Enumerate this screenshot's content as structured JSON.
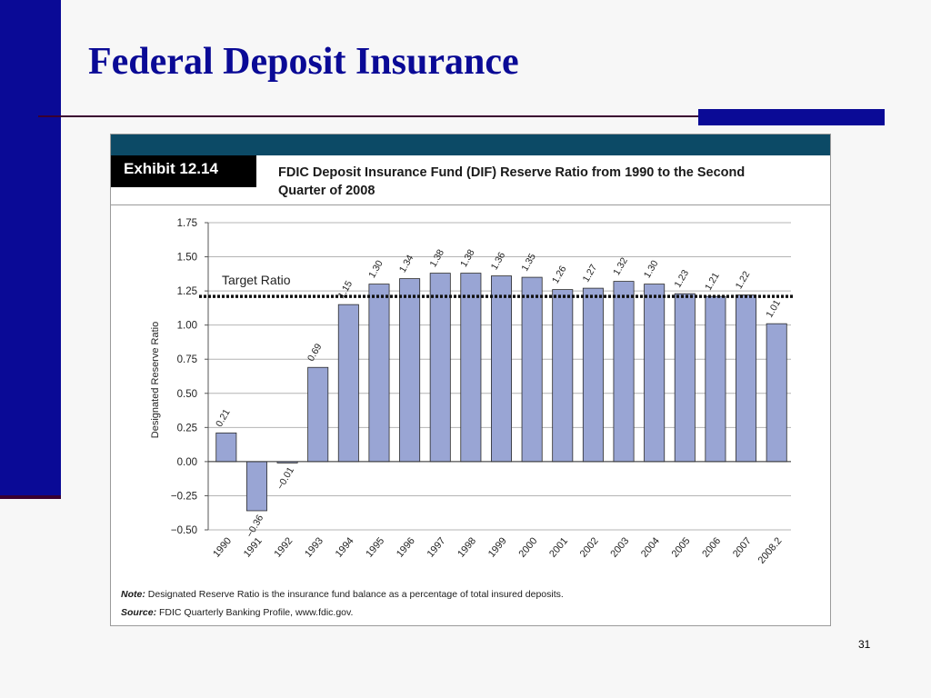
{
  "slide": {
    "title": "Federal Deposit Insurance",
    "page_number": "31"
  },
  "exhibit": {
    "tag": "Exhibit 12.14",
    "heading_line1": "FDIC Deposit Insurance Fund (DIF) Reserve Ratio from 1990 to the Second",
    "heading_line2": "Quarter of 2008",
    "note_label": "Note:",
    "note_text": "Designated Reserve Ratio is the insurance fund balance as a percentage of total insured deposits.",
    "source_label": "Source:",
    "source_text": "FDIC Quarterly Banking Profile, www.fdic.gov."
  },
  "chart_data": {
    "type": "bar",
    "title": "",
    "xlabel": "",
    "ylabel": "Designated Reserve Ratio",
    "categories": [
      "1990",
      "1991",
      "1992",
      "1993",
      "1994",
      "1995",
      "1996",
      "1997",
      "1998",
      "1999",
      "2000",
      "2001",
      "2002",
      "2003",
      "2004",
      "2005",
      "2006",
      "2007",
      "2008.2"
    ],
    "values": [
      0.21,
      -0.36,
      -0.01,
      0.69,
      1.15,
      1.3,
      1.34,
      1.38,
      1.38,
      1.36,
      1.35,
      1.26,
      1.27,
      1.32,
      1.3,
      1.23,
      1.21,
      1.22,
      1.01
    ],
    "value_labels": [
      "0.21",
      "−0.36",
      "−0.01",
      "0.69",
      "1.15",
      "1.30",
      "1.34",
      "1.38",
      "1.38",
      "1.36",
      "1.35",
      "1.26",
      "1.27",
      "1.32",
      "1.30",
      "1.23",
      "1.21",
      "1.22",
      "1.01"
    ],
    "ylim": [
      -0.5,
      1.75
    ],
    "yticks": [
      -0.5,
      -0.25,
      0,
      0.25,
      0.5,
      0.75,
      1.0,
      1.25,
      1.5,
      1.75
    ],
    "ytick_labels": [
      "−0.50",
      "−0.25",
      "0.00",
      "0.25",
      "0.50",
      "0.75",
      "1.00",
      "1.25",
      "1.50",
      "1.75"
    ],
    "target_ratio": {
      "label": "Target Ratio",
      "value": 1.21
    },
    "grid": true,
    "bar_color": "#99a5d4",
    "bar_edge_color": "#2a2a2a"
  }
}
